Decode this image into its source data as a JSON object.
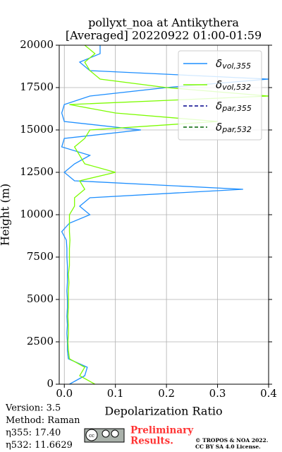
{
  "chart_data": {
    "type": "line",
    "title_lines": [
      "pollyxt_noa at Antikythera",
      "[Averaged] 20220922 01:00-01:59"
    ],
    "xlabel": "Depolarization Ratio",
    "ylabel": "Height (m)",
    "y": [
      0,
      500,
      1000,
      1500,
      2000,
      2500,
      3000,
      3500,
      4000,
      4500,
      5000,
      5500,
      6000,
      6500,
      7000,
      7500,
      8000,
      8500,
      9000,
      9500,
      10000,
      10500,
      11000,
      11500,
      12000,
      12500,
      13000,
      13500,
      14000,
      14500,
      15000,
      15500,
      16000,
      16500,
      17000,
      17500,
      18000,
      18500,
      19000,
      19500,
      20000
    ],
    "series": [
      {
        "name": "δvol,355",
        "color": "#1e8fff",
        "dash": "solid",
        "values": [
          0.01,
          0.04,
          0.045,
          0.008,
          0.006,
          0.006,
          0.005,
          0.006,
          0.005,
          0.006,
          0.006,
          0.005,
          0.006,
          0.006,
          0.006,
          0.005,
          0.005,
          0.004,
          -0.005,
          0.01,
          0.05,
          0.03,
          0.05,
          0.35,
          0.02,
          0.0,
          0.02,
          0.05,
          -0.005,
          0.0,
          0.15,
          0.0,
          -0.005,
          0.0,
          0.05,
          0.2,
          0.4,
          0.05,
          0.03,
          0.07,
          0.07
        ]
      },
      {
        "name": "δvol,532",
        "color": "#7cfc00",
        "dash": "solid",
        "values": [
          0.06,
          0.03,
          0.04,
          0.01,
          0.008,
          0.007,
          0.008,
          0.008,
          0.007,
          0.008,
          0.008,
          0.008,
          0.009,
          0.008,
          0.01,
          0.01,
          0.01,
          0.011,
          0.01,
          0.01,
          0.01,
          0.02,
          0.02,
          0.04,
          0.03,
          0.1,
          0.04,
          0.03,
          0.02,
          0.04,
          0.05,
          0.3,
          0.1,
          0.01,
          0.4,
          0.2,
          0.07,
          0.05,
          0.04,
          0.06,
          0.04
        ]
      },
      {
        "name": "δpar,355",
        "color": "#00008b",
        "dash": "dashed",
        "values": [
          null,
          null,
          null,
          null,
          null,
          null,
          null,
          null,
          null,
          null,
          null,
          null,
          null,
          null,
          null,
          null,
          null,
          null,
          null,
          null,
          null,
          null,
          null,
          null,
          null,
          null,
          null,
          null,
          null,
          null,
          null,
          null,
          null,
          null,
          null,
          null,
          null,
          null,
          null,
          null,
          null
        ]
      },
      {
        "name": "δpar,532",
        "color": "#006400",
        "dash": "dashed",
        "values": [
          null,
          null,
          null,
          null,
          null,
          null,
          null,
          null,
          null,
          null,
          null,
          null,
          null,
          null,
          null,
          null,
          null,
          null,
          null,
          null,
          null,
          null,
          null,
          null,
          null,
          null,
          null,
          null,
          null,
          null,
          null,
          null,
          null,
          null,
          null,
          null,
          null,
          null,
          null,
          null,
          null
        ]
      }
    ],
    "xlim": [
      -0.01,
      0.4
    ],
    "xticks": [
      {
        "value": 0,
        "label": "0.0"
      },
      {
        "value": 0.1,
        "label": "0.1"
      },
      {
        "value": 0.2,
        "label": "0.2"
      },
      {
        "value": 0.3,
        "label": "0.3"
      },
      {
        "value": 0.4,
        "label": "0.4"
      }
    ],
    "ylim": [
      0,
      20000
    ],
    "yticks": [
      0,
      2500,
      5000,
      7500,
      10000,
      12500,
      15000,
      17500,
      20000
    ],
    "grid": true,
    "legend": "upper right",
    "info": [
      "Version: 3.5",
      "Method: Raman",
      "η355:  17.40",
      "η532: 11.6629"
    ],
    "notice": [
      "Preliminary",
      "Results."
    ],
    "license": [
      "© TROPOS & NOA 2022.",
      "CC BY SA 4.0 License."
    ]
  }
}
